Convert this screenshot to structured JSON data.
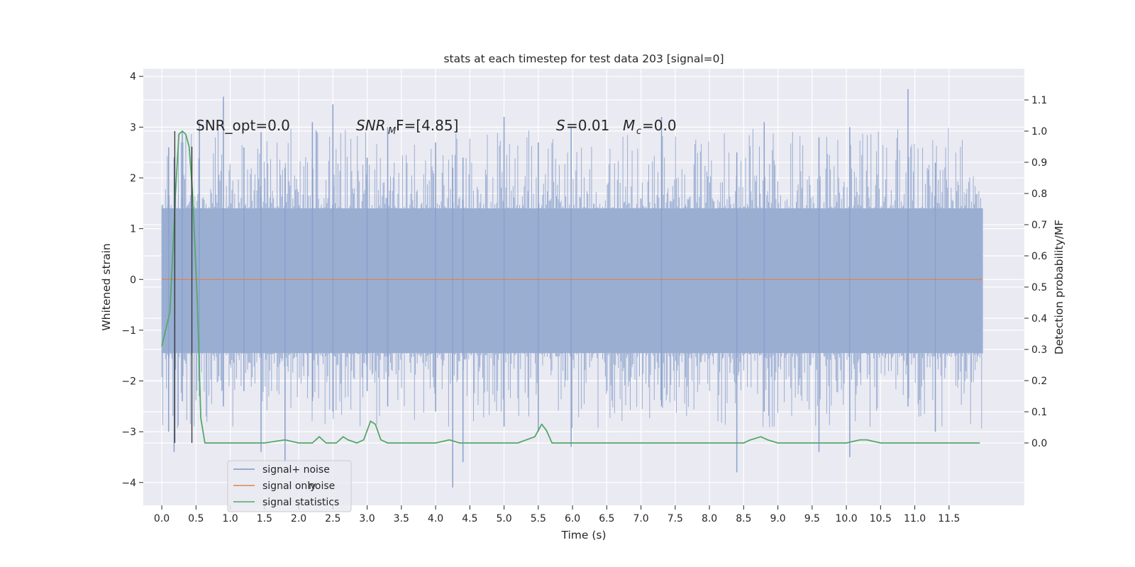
{
  "chart_data": {
    "type": "line",
    "title": "stats at each timestep for test data 203 [signal=0]",
    "xlabel": "Time (s)",
    "ylabel": "Whitened strain",
    "y2label": "Detection probability/MF",
    "xlim": [
      -0.27,
      12.6
    ],
    "ylim": [
      -4.45,
      4.15
    ],
    "y2lim": [
      -0.2,
      1.2
    ],
    "x_ticks": [
      "0.0",
      "0.5",
      "1.0",
      "1.5",
      "2.0",
      "2.5",
      "3.0",
      "3.5",
      "4.0",
      "4.5",
      "5.0",
      "5.5",
      "6.0",
      "6.5",
      "7.0",
      "7.5",
      "8.0",
      "8.5",
      "9.0",
      "9.5",
      "10.0",
      "10.5",
      "11.0",
      "11.5"
    ],
    "y_ticks": [
      "4",
      "3",
      "2",
      "1",
      "0",
      "−1",
      "−2",
      "−3",
      "−4"
    ],
    "y2_ticks": [
      "1.1",
      "1.0",
      "0.9",
      "0.8",
      "0.7",
      "0.6",
      "0.5",
      "0.4",
      "0.3",
      "0.2",
      "0.1",
      "0.0"
    ],
    "grid": true,
    "legend_position": "lower-left",
    "legend_ghost_text": "noise",
    "annotations": {
      "snr_opt": "SNR_opt=0.0",
      "snr_mf_sym": "SNR",
      "snr_mf_sub": "M",
      "snr_mf_rest": "F=[4.85]",
      "s_sym": "S",
      "s_val": "=0.01",
      "mc_sym": "M",
      "mc_sub": "c",
      "mc_val": "=0.0"
    },
    "noise_band": {
      "x_start": 0.0,
      "x_end": 11.99,
      "typical_low": -1.45,
      "typical_high": 1.4
    },
    "noise_spikes": [
      {
        "x": 0.1,
        "low": -3.0,
        "high": 2.6
      },
      {
        "x": 0.18,
        "low": -3.4,
        "high": 2.4
      },
      {
        "x": 0.3,
        "low": -2.4,
        "high": 2.9
      },
      {
        "x": 0.55,
        "low": -2.3,
        "high": 3.1
      },
      {
        "x": 0.9,
        "low": -2.5,
        "high": 3.6
      },
      {
        "x": 1.2,
        "low": -2.2,
        "high": 2.6
      },
      {
        "x": 1.45,
        "low": -3.4,
        "high": 2.9
      },
      {
        "x": 1.8,
        "low": -3.6,
        "high": 2.2
      },
      {
        "x": 2.2,
        "low": -2.4,
        "high": 3.1
      },
      {
        "x": 2.5,
        "low": -2.6,
        "high": 3.45
      },
      {
        "x": 3.0,
        "low": -2.2,
        "high": 2.4
      },
      {
        "x": 3.3,
        "low": -2.5,
        "high": 3.0
      },
      {
        "x": 4.0,
        "low": -2.6,
        "high": 2.7
      },
      {
        "x": 4.25,
        "low": -4.1,
        "high": 2.2
      },
      {
        "x": 4.4,
        "low": -3.6,
        "high": 2.4
      },
      {
        "x": 5.0,
        "low": -2.9,
        "high": 3.2
      },
      {
        "x": 5.5,
        "low": -3.0,
        "high": 2.7
      },
      {
        "x": 5.98,
        "low": -3.3,
        "high": 3.0
      },
      {
        "x": 7.3,
        "low": -2.5,
        "high": 3.2
      },
      {
        "x": 8.4,
        "low": -3.8,
        "high": 2.5
      },
      {
        "x": 8.8,
        "low": -2.6,
        "high": 3.1
      },
      {
        "x": 9.6,
        "low": -3.4,
        "high": 2.8
      },
      {
        "x": 10.05,
        "low": -3.5,
        "high": 3.0
      },
      {
        "x": 10.9,
        "low": -2.5,
        "high": 3.75
      },
      {
        "x": 11.3,
        "low": -3.0,
        "high": 2.3
      }
    ],
    "series": [
      {
        "name": "signal+ noise",
        "color": "#7c98c8"
      },
      {
        "name": "signal only",
        "color": "#dd8452",
        "x": [
          0.0,
          11.99
        ],
        "y": [
          0.0,
          0.0
        ]
      },
      {
        "name": "signal statistics",
        "color": "#55a868",
        "x": [
          0.0,
          0.12,
          0.2,
          0.25,
          0.3,
          0.35,
          0.4,
          0.45,
          0.52,
          0.57,
          0.63,
          0.7,
          0.8,
          1.5,
          1.8,
          2.0,
          2.2,
          2.3,
          2.4,
          2.55,
          2.65,
          2.72,
          2.85,
          2.95,
          3.05,
          3.12,
          3.2,
          3.3,
          3.5,
          4.0,
          4.2,
          4.35,
          4.5,
          4.7,
          5.2,
          5.45,
          5.55,
          5.62,
          5.7,
          5.8,
          5.95,
          6.05,
          6.4,
          6.6,
          6.8,
          7.1,
          8.0,
          8.5,
          8.6,
          8.75,
          8.85,
          9.0,
          9.3,
          10.0,
          10.2,
          10.3,
          10.5,
          10.8,
          10.95,
          11.1,
          11.5,
          11.95
        ],
        "y": [
          0.31,
          0.42,
          0.8,
          0.99,
          1.0,
          0.99,
          0.95,
          0.8,
          0.45,
          0.08,
          0.0,
          0.0,
          0.0,
          0.0,
          0.01,
          0.0,
          0.0,
          0.02,
          0.0,
          0.0,
          0.02,
          0.01,
          0.0,
          0.01,
          0.07,
          0.06,
          0.01,
          0.0,
          0.0,
          0.0,
          0.01,
          0.0,
          0.0,
          0.0,
          0.0,
          0.02,
          0.06,
          0.04,
          0.0,
          0.0,
          0.0,
          0.0,
          0.0,
          0.0,
          0.0,
          0.0,
          0.0,
          0.0,
          0.01,
          0.02,
          0.01,
          0.0,
          0.0,
          0.0,
          0.01,
          0.01,
          0.0,
          0.0,
          0.0,
          0.0,
          0.0,
          0.0
        ]
      }
    ],
    "markers": [
      {
        "name": "left-boundary",
        "x": 0.19,
        "y_low": 0.0,
        "y_high": 1.0,
        "color": "#333333"
      },
      {
        "name": "right-boundary",
        "x": 0.44,
        "y_low": 0.0,
        "y_high": 0.95,
        "color": "#333333"
      }
    ],
    "colors": {
      "plot_bg": "#eaeaf2",
      "grid": "#ffffff",
      "text": "#262626"
    }
  }
}
